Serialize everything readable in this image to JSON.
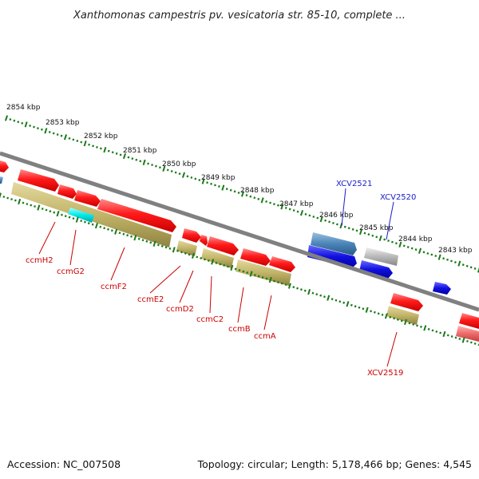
{
  "title": "Xanthomonas campestris pv. vesicatoria str. 85-10, complete ...",
  "footer": {
    "accession": "Accession: NC_007508",
    "summary": "Topology: circular; Length: 5,178,466 bp; Genes: 4,545"
  },
  "colors": {
    "backbone": "#808080",
    "tick": "#1a7a1a",
    "forward_gene": "#ff1a1a",
    "cds_block": "#c2b468",
    "label_red": "#cc0000",
    "label_blue": "#1a1acc",
    "steel": "#4a84b8",
    "blue": "#1010e0",
    "grey": "#b8b8b8",
    "cyan": "#00e8e8",
    "pink": "#ee6a6a"
  },
  "kbp_labels": [
    "2854 kbp",
    "2853 kbp",
    "2852 kbp",
    "2851 kbp",
    "2850 kbp",
    "2849 kbp",
    "2848 kbp",
    "2847 kbp",
    "2846 kbp",
    "2845 kbp",
    "2844 kbp",
    "2843 kbp"
  ],
  "lower_genes": [
    {
      "label": "ccmH2"
    },
    {
      "label": "ccmG2"
    },
    {
      "label": "ccmF2"
    },
    {
      "label": "ccmE2"
    },
    {
      "label": "ccmD2"
    },
    {
      "label": "ccmC2"
    },
    {
      "label": "ccmB"
    },
    {
      "label": "ccmA"
    },
    {
      "label": "XCV2519"
    }
  ],
  "upper_genes": [
    {
      "label": "XCV2521"
    },
    {
      "label": "XCV2520"
    }
  ]
}
